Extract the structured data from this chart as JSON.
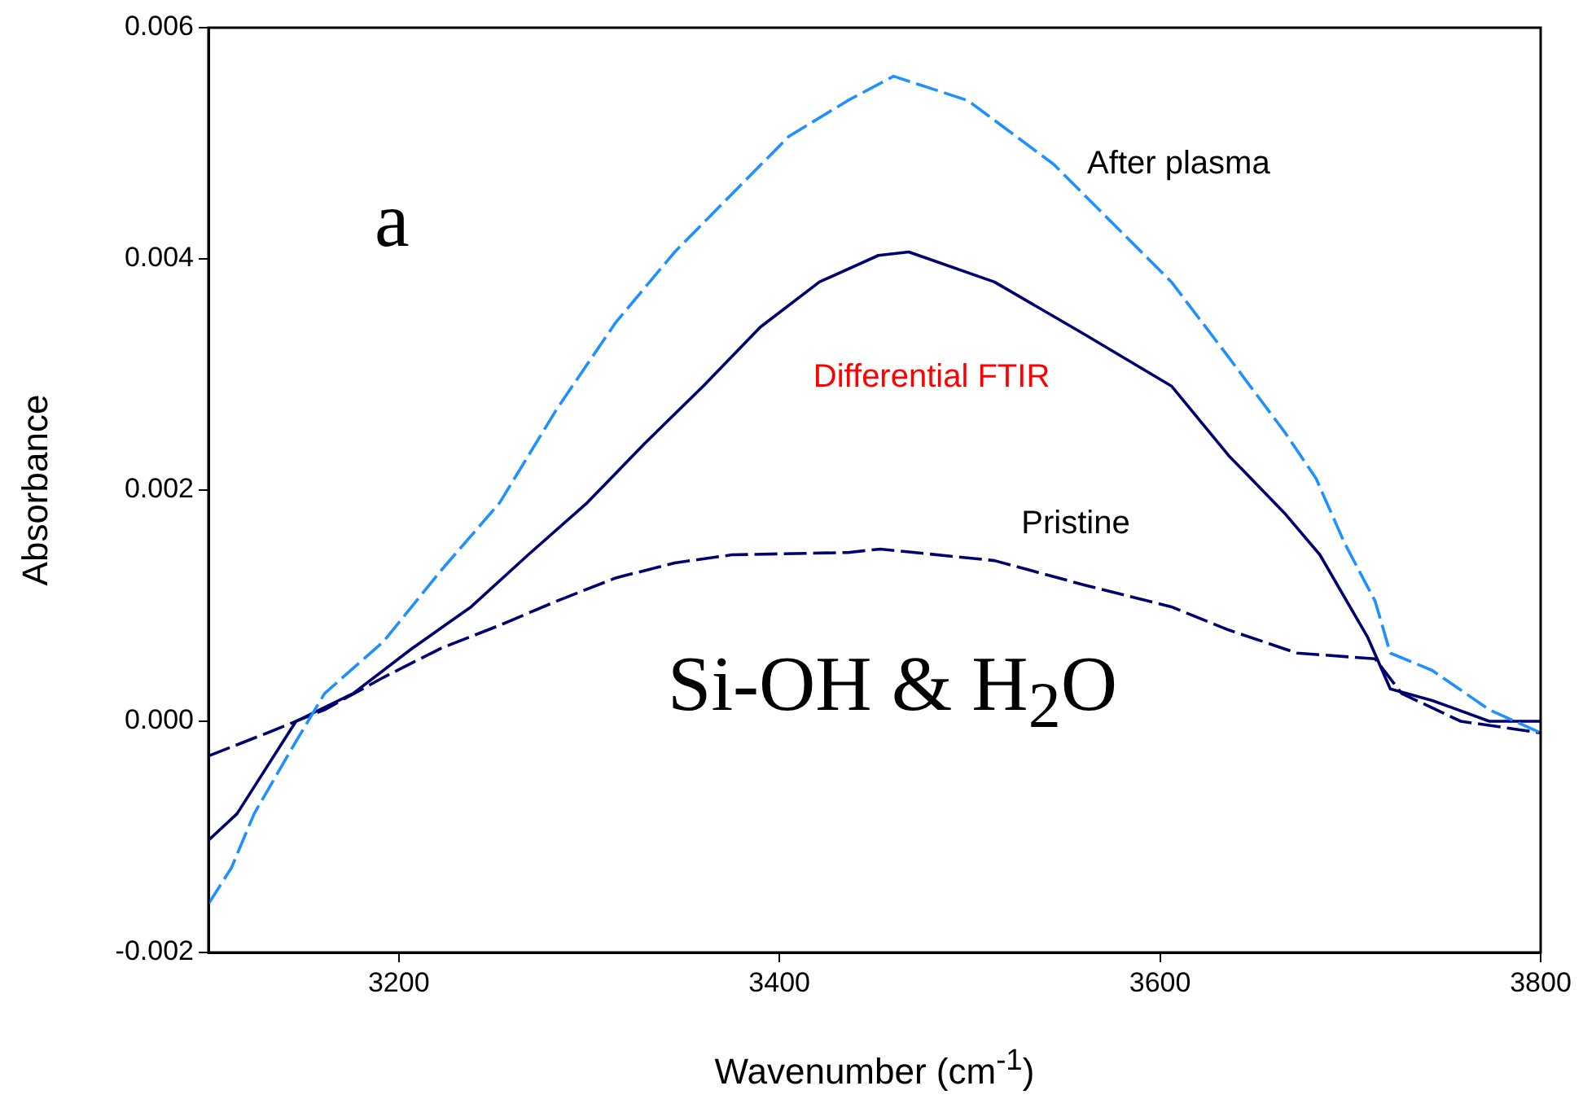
{
  "chart_data": {
    "type": "line",
    "xlabel": "Wavenumber (cm$^{-1}$)",
    "ylabel": "Absorbance",
    "xlim": [
      3100,
      3800
    ],
    "xticks": [
      3200,
      3400,
      3600,
      3800
    ],
    "ylim": [
      -0.002,
      0.006
    ],
    "yticks": [
      -0.002,
      {
        "value": 0,
        "label": "0.000"
      },
      0.002,
      0.004,
      0.006
    ],
    "annotations": [
      "a",
      "Si-OH & H$_{2}$O"
    ],
    "series": [
      {
        "name": "After plasma",
        "color": "#1e90ff",
        "line_style": "dashed",
        "x": [
          3100,
          3112,
          3124,
          3144,
          3161,
          3192,
          3222,
          3253,
          3283,
          3314,
          3345,
          3375,
          3405,
          3436,
          3460,
          3499,
          3544,
          3575,
          3606,
          3636,
          3666,
          3682,
          3697,
          3713,
          3721,
          3743,
          3773,
          3800
        ],
        "values": [
          -0.00158,
          -0.00127,
          -0.0008,
          -0.00023,
          0.00024,
          0.00069,
          0.0013,
          0.00189,
          0.0027,
          0.00345,
          0.00406,
          0.00456,
          0.00506,
          0.00537,
          0.00558,
          0.00537,
          0.00482,
          0.00431,
          0.0038,
          0.00315,
          0.00249,
          0.0021,
          0.00154,
          0.00104,
          0.00059,
          0.00044,
          0.0001,
          -0.0001
        ]
      },
      {
        "name": "Differential FTIR",
        "color": "#00006e",
        "line_style": "solid",
        "x": [
          3100,
          3115,
          3146,
          3176,
          3207,
          3238,
          3268,
          3299,
          3329,
          3360,
          3390,
          3421,
          3452,
          3468,
          3513,
          3560,
          3606,
          3636,
          3666,
          3684,
          3709,
          3721,
          3743,
          3773,
          3800
        ],
        "values": [
          -0.00103,
          -0.0008,
          0,
          0.00024,
          0.00063,
          0.00099,
          0.00144,
          0.00189,
          0.0024,
          0.0029,
          0.00341,
          0.0038,
          0.00403,
          0.00406,
          0.0038,
          0.00335,
          0.0029,
          0.0023,
          0.00179,
          0.00144,
          0.00073,
          0.00028,
          0.00018,
          0,
          0
        ]
      },
      {
        "name": "Pristine",
        "color": "#00006e",
        "line_style": "dashed",
        "x": [
          3100,
          3131,
          3161,
          3192,
          3222,
          3253,
          3283,
          3314,
          3345,
          3375,
          3436,
          3453,
          3513,
          3560,
          3606,
          3636,
          3672,
          3713,
          3727,
          3758,
          3800
        ],
        "values": [
          -0.0003,
          -0.0001,
          0.0001,
          0.00038,
          0.00063,
          0.00083,
          0.00104,
          0.00124,
          0.00137,
          0.00144,
          0.00146,
          0.00149,
          0.00139,
          0.00118,
          0.00099,
          0.00079,
          0.00059,
          0.00054,
          0.00024,
          0,
          -0.0001
        ]
      }
    ]
  }
}
